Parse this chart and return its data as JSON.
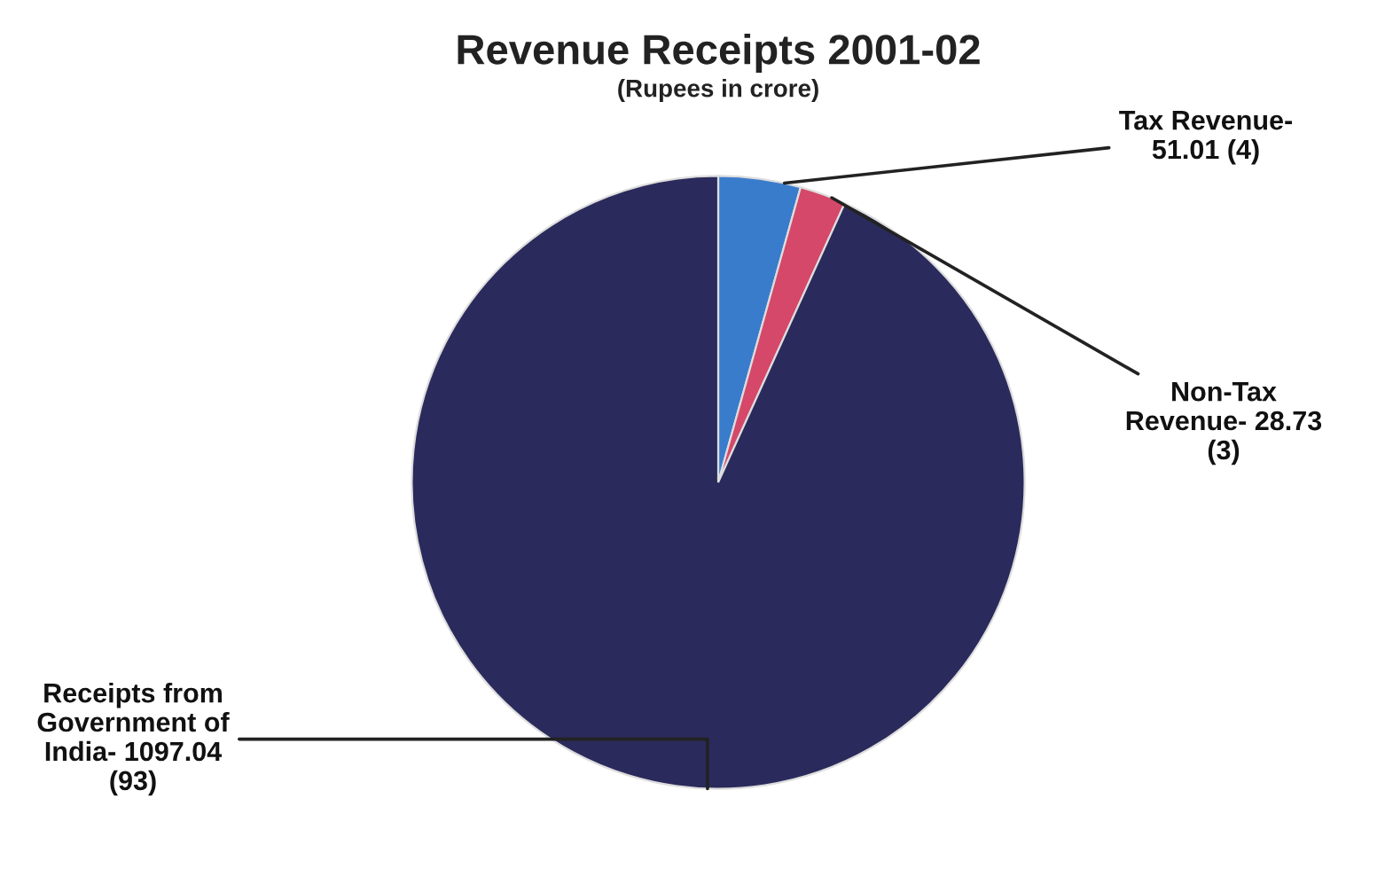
{
  "chart_data": {
    "type": "pie",
    "title": "Revenue Receipts 2001-02",
    "subtitle": "(Rupees in crore)",
    "categories": [
      "Tax Revenue-\n51.01 (4)",
      "Non-Tax\nRevenue- 28.73\n(3)",
      "Receipts from\nGovernment of\nIndia- 1097.04\n(93)"
    ],
    "values": [
      51.01,
      28.73,
      1097.04
    ],
    "colors": [
      "#3a7ccc",
      "#d5486a",
      "#2b2a5c"
    ],
    "legend": false
  }
}
